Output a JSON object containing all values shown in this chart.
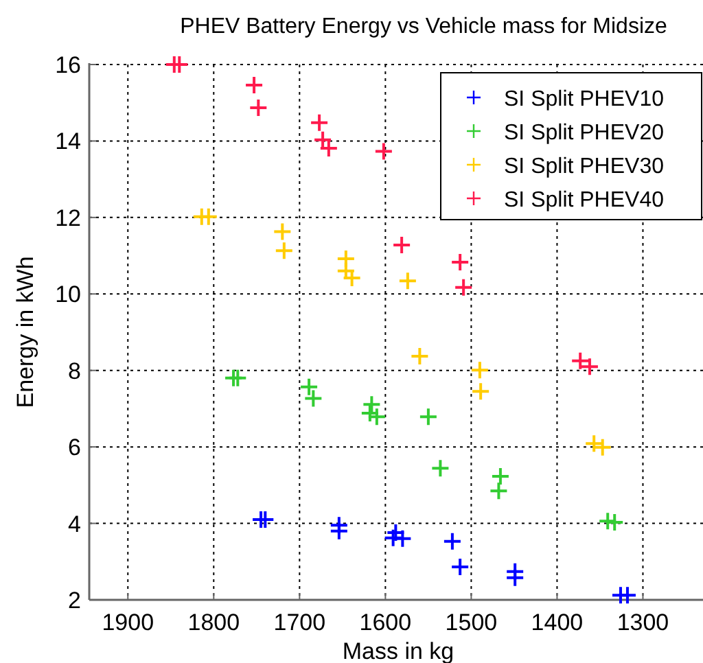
{
  "chart_data": {
    "type": "scatter",
    "title": "PHEV Battery Energy vs Vehicle mass for Midsize",
    "xlabel": "Mass in kg",
    "ylabel": "Energy in kWh",
    "xlim": [
      1945,
      1230
    ],
    "xticks": [
      1900,
      1800,
      1700,
      1600,
      1500,
      1400,
      1300
    ],
    "ylim": [
      2,
      16
    ],
    "yticks": [
      2,
      4,
      6,
      8,
      10,
      12,
      14,
      16
    ],
    "grid": true,
    "legend": "top right",
    "marker": "cross",
    "series": [
      {
        "name": "SI Split PHEV10",
        "color": "#0000ff",
        "x": [
          1745,
          1740,
          1654,
          1654,
          1591,
          1588,
          1580,
          1522,
          1513,
          1449,
          1449,
          1326,
          1318
        ],
        "values": [
          4.1,
          4.1,
          3.95,
          3.8,
          3.62,
          3.76,
          3.6,
          3.53,
          2.86,
          2.74,
          2.58,
          2.12,
          2.12
        ]
      },
      {
        "name": "SI Split PHEV20",
        "color": "#33cc33",
        "x": [
          1777,
          1772,
          1689,
          1684,
          1616,
          1618,
          1610,
          1550,
          1536,
          1466,
          1468,
          1341,
          1333
        ],
        "values": [
          7.8,
          7.8,
          7.57,
          7.27,
          7.11,
          6.88,
          6.79,
          6.79,
          5.44,
          5.23,
          4.85,
          4.06,
          4.03
        ]
      },
      {
        "name": "SI Split PHEV30",
        "color": "#ffcc00",
        "x": [
          1814,
          1806,
          1720,
          1718,
          1646,
          1646,
          1639,
          1574,
          1560,
          1490,
          1489,
          1357,
          1347
        ],
        "values": [
          12.02,
          12.02,
          11.63,
          11.13,
          10.92,
          10.6,
          10.42,
          10.34,
          8.37,
          8.01,
          7.45,
          6.09,
          5.99
        ]
      },
      {
        "name": "SI Split PHEV40",
        "color": "#ff1a4d",
        "x": [
          1846,
          1840,
          1753,
          1748,
          1677,
          1673,
          1666,
          1602,
          1581,
          1513,
          1509,
          1373,
          1362
        ],
        "values": [
          16.0,
          16.0,
          15.46,
          14.87,
          14.48,
          14.03,
          13.81,
          13.73,
          11.28,
          10.83,
          10.17,
          8.25,
          8.1
        ]
      }
    ]
  }
}
